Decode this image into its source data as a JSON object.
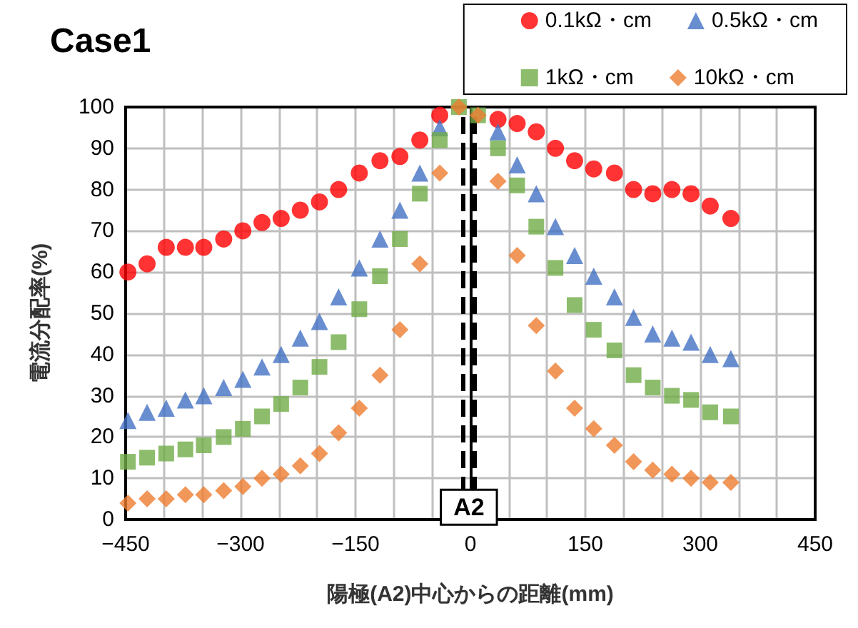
{
  "chart_data": {
    "type": "scatter",
    "title": "Case1",
    "xlabel": "陽極(A2)中心からの距離(mm)",
    "ylabel": "電流分配率(%)",
    "x": [
      -447,
      -422,
      -397,
      -372,
      -348,
      -322,
      -297,
      -272,
      -247,
      -222,
      -197,
      -172,
      -145,
      -118,
      -92,
      -66,
      -40,
      -15,
      10,
      36,
      61,
      86,
      111,
      136,
      161,
      188,
      213,
      238,
      263,
      288,
      313,
      340
    ],
    "series": [
      {
        "name": "0.1kΩ・cm",
        "color": "#ff0000",
        "marker": "circle",
        "values": [
          60,
          62,
          66,
          66,
          66,
          68,
          70,
          72,
          73,
          75,
          77,
          80,
          84,
          87,
          88,
          92,
          98,
          null,
          null,
          97,
          96,
          94,
          90,
          87,
          85,
          84,
          80,
          79,
          80,
          79,
          76,
          73
        ]
      },
      {
        "name": "0.5kΩ・cm",
        "color": "#4472c4",
        "marker": "triangle",
        "values": [
          24,
          26,
          27,
          29,
          30,
          32,
          34,
          37,
          40,
          44,
          48,
          54,
          61,
          68,
          75,
          84,
          95,
          null,
          null,
          94,
          86,
          79,
          71,
          64,
          59,
          54,
          49,
          45,
          44,
          43,
          40,
          39
        ]
      },
      {
        "name": "1kΩ・cm",
        "color": "#70ad47",
        "marker": "square",
        "values": [
          14,
          15,
          16,
          17,
          18,
          20,
          22,
          25,
          28,
          32,
          37,
          43,
          51,
          59,
          68,
          79,
          92,
          100,
          98,
          90,
          81,
          71,
          61,
          52,
          46,
          41,
          35,
          32,
          30,
          29,
          26,
          25
        ]
      },
      {
        "name": "10kΩ・cm",
        "color": "#ed7d31",
        "marker": "diamond",
        "values": [
          4,
          5,
          5,
          6,
          6,
          7,
          8,
          10,
          11,
          13,
          16,
          21,
          27,
          35,
          46,
          62,
          84,
          100,
          98,
          82,
          64,
          47,
          36,
          27,
          22,
          18,
          14,
          12,
          11,
          10,
          9,
          9
        ]
      }
    ],
    "xlim": [
      -450,
      450
    ],
    "xticks": [
      -450,
      {
        "value": -400,
        "label": null
      },
      {
        "value": -350,
        "label": null
      },
      -300,
      {
        "value": -250,
        "label": null
      },
      {
        "value": -200,
        "label": null
      },
      -150,
      {
        "value": -100,
        "label": null
      },
      {
        "value": -50,
        "label": null
      },
      0,
      {
        "value": 50,
        "label": null
      },
      {
        "value": 100,
        "label": null
      },
      150,
      {
        "value": 200,
        "label": null
      },
      {
        "value": 250,
        "label": null
      },
      300,
      {
        "value": 350,
        "label": null
      },
      {
        "value": 400,
        "label": null
      },
      450
    ],
    "ylim": [
      0,
      100
    ],
    "yticks": [
      0,
      10,
      20,
      30,
      40,
      50,
      60,
      70,
      80,
      90,
      100
    ],
    "grid": true,
    "legend": "top right",
    "ref_lines": [
      {
        "axis": "x",
        "value": -10,
        "color": "#000000",
        "line_style": "dashed"
      },
      {
        "axis": "x",
        "value": 6,
        "color": "#000000",
        "line_style": "dashed"
      }
    ],
    "annotations": [
      {
        "text": "A2",
        "x": -2,
        "y": 3
      }
    ]
  }
}
